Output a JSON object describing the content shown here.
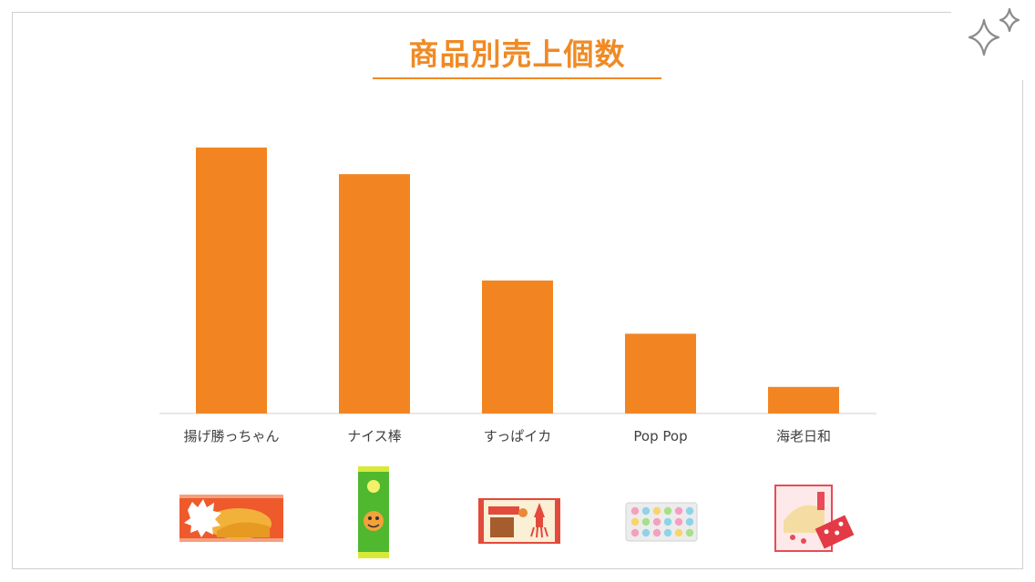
{
  "title": "商品別売上個数",
  "icons": {
    "sparkle": "sparkle-icon"
  },
  "chart_data": {
    "type": "bar",
    "title": "商品別売上個数",
    "xlabel": "",
    "ylabel": "",
    "categories": [
      "揚げ勝っちゃん",
      "ナイス棒",
      "すっぱイカ",
      "Pop Pop",
      "海老日和"
    ],
    "values": [
      100,
      90,
      50,
      30,
      10
    ],
    "ylim": [
      0,
      100
    ],
    "grid": false,
    "legend": "none",
    "bar_color": "#f28522"
  }
}
